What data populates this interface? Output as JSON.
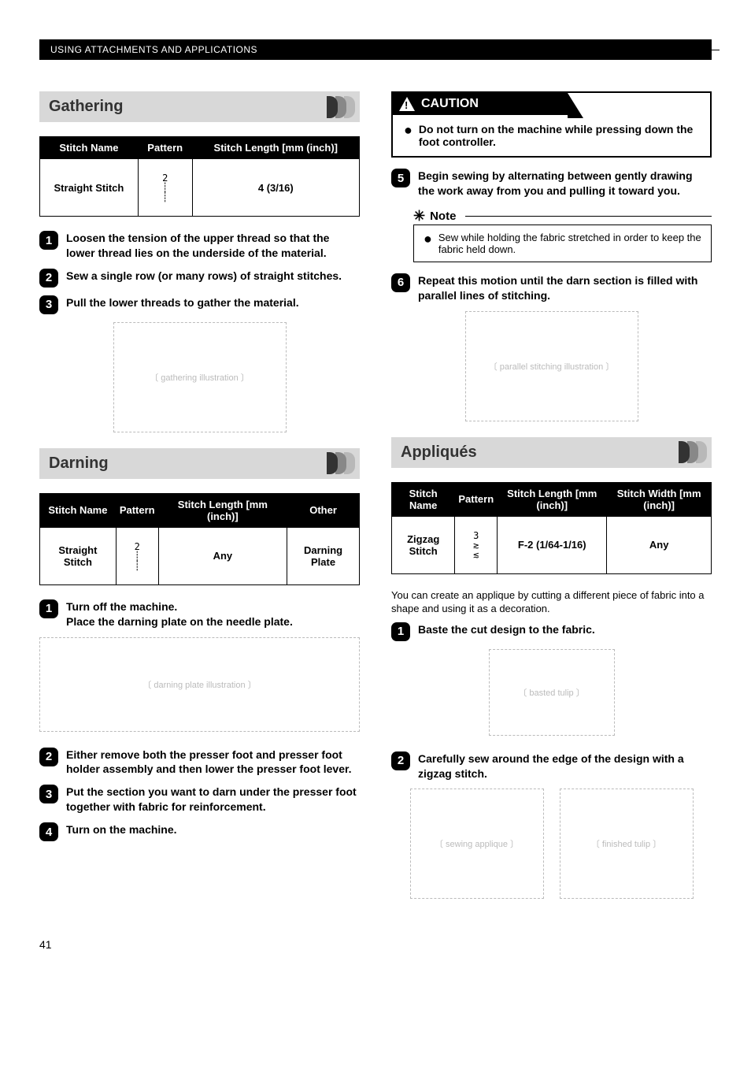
{
  "header": "USING ATTACHMENTS AND APPLICATIONS",
  "page_number": "41",
  "gathering": {
    "title": "Gathering",
    "table": {
      "headers": [
        "Stitch Name",
        "Pattern",
        "Stitch Length [mm (inch)]"
      ],
      "row": {
        "name": "Straight Stitch",
        "pattern_num": "2",
        "length": "4 (3/16)"
      }
    },
    "steps": [
      "Loosen the tension of the upper thread so that the lower thread lies on the underside of the material.",
      "Sew a single row (or many rows) of straight stitches.",
      "Pull the lower threads to gather the material."
    ]
  },
  "darning": {
    "title": "Darning",
    "table": {
      "headers": [
        "Stitch Name",
        "Pattern",
        "Stitch Length [mm (inch)]",
        "Other"
      ],
      "row": {
        "name": "Straight Stitch",
        "pattern_num": "2",
        "length": "Any",
        "other": "Darning Plate"
      }
    },
    "steps": [
      {
        "a": "Turn off the machine.",
        "b": "Place the darning plate on the needle plate."
      },
      {
        "a": "Either remove both the presser foot and presser foot holder assembly and then lower the presser foot lever."
      },
      {
        "a": "Put the section you want to darn under the presser foot together with fabric for reinforcement."
      },
      {
        "a": "Turn on the machine."
      }
    ]
  },
  "caution": {
    "label": "CAUTION",
    "text": "Do not turn on the machine while pressing down the foot controller."
  },
  "right_steps": {
    "s5": "Begin sewing by alternating between gently drawing the work away from you and pulling it toward you.",
    "s6": "Repeat this motion until the darn section is filled with parallel lines of stitching."
  },
  "note": {
    "label": "Note",
    "text": "Sew while holding the fabric stretched in order to keep the fabric held down."
  },
  "appliques": {
    "title": "Appliqués",
    "table": {
      "headers": [
        "Stitch Name",
        "Pattern",
        "Stitch Length [mm (inch)]",
        "Stitch Width [mm (inch)]"
      ],
      "row": {
        "name": "Zigzag Stitch",
        "pattern_num": "3",
        "length": "F-2 (1/64-1/16)",
        "width": "Any"
      }
    },
    "intro": "You can create an applique by cutting a different piece of fabric into a shape and using it as a decoration.",
    "steps": [
      "Baste the cut design to the fabric.",
      "Carefully sew around the edge of the design with a zigzag stitch."
    ]
  },
  "style": {
    "title_bg": "#d8d8d8",
    "header_bg": "#000000",
    "text_color": "#000000"
  }
}
